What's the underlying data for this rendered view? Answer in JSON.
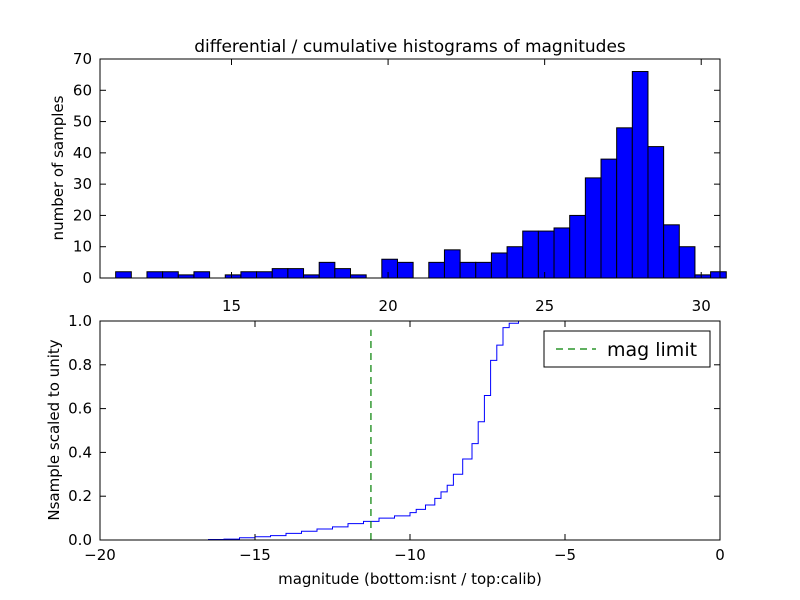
{
  "chart_data": [
    {
      "type": "bar",
      "title": "differential / cumulative histograms of magnitudes",
      "xlabel": "",
      "ylabel": "number of samples",
      "xlim": [
        10.8,
        30.6
      ],
      "ylim": [
        0,
        70
      ],
      "xticks": [
        15,
        20,
        25,
        30
      ],
      "yticks": [
        0,
        10,
        20,
        30,
        40,
        50,
        60,
        70
      ],
      "bar_color": "#0000ff",
      "bin_start": 11.3,
      "bin_width": 0.5,
      "values": [
        2,
        0,
        2,
        2,
        1,
        2,
        0,
        1,
        2,
        2,
        3,
        3,
        1,
        5,
        3,
        1,
        0,
        6,
        5,
        0,
        5,
        9,
        5,
        5,
        8,
        10,
        15,
        15,
        16,
        20,
        32,
        38,
        48,
        66,
        42,
        17,
        10,
        1,
        2
      ]
    },
    {
      "type": "line",
      "xlabel": "magnitude (bottom:isnt / top:calib)",
      "ylabel": "Nsample scaled to unity",
      "xlim": [
        -20,
        0
      ],
      "ylim": [
        0,
        1.0
      ],
      "xticks": [
        -20,
        -15,
        -10,
        -5,
        0
      ],
      "yticks": [
        0.0,
        0.2,
        0.4,
        0.6,
        0.8,
        1.0
      ],
      "line_color": "#0000ff",
      "series": [
        {
          "x": [
            -20,
            -16.5,
            -16.0,
            -15.5,
            -15.0,
            -14.5,
            -14.0,
            -13.5,
            -13.0,
            -12.5,
            -12.0,
            -11.5,
            -11.0,
            -10.5,
            -10.0,
            -9.8,
            -9.5,
            -9.2,
            -9.0,
            -8.8,
            -8.6,
            -8.3,
            -8.0,
            -7.8,
            -7.6,
            -7.4,
            -7.2,
            -7.0,
            -6.8,
            -6.5,
            -6.0,
            -5.5,
            -5.0,
            0
          ],
          "y": [
            0.0,
            0.002,
            0.004,
            0.01,
            0.015,
            0.02,
            0.03,
            0.04,
            0.05,
            0.06,
            0.075,
            0.085,
            0.1,
            0.11,
            0.125,
            0.14,
            0.16,
            0.19,
            0.22,
            0.25,
            0.3,
            0.37,
            0.44,
            0.54,
            0.66,
            0.82,
            0.89,
            0.97,
            0.99,
            1.0,
            1.0,
            1.0,
            1.0,
            1.0
          ]
        },
        {
          "name": "mag limit",
          "style": "dashed",
          "color": "#008000",
          "x": [
            -11.26,
            -11.26
          ],
          "y": [
            0,
            0.96
          ]
        }
      ],
      "legend": {
        "label": "mag limit",
        "position": "top-right"
      }
    }
  ]
}
